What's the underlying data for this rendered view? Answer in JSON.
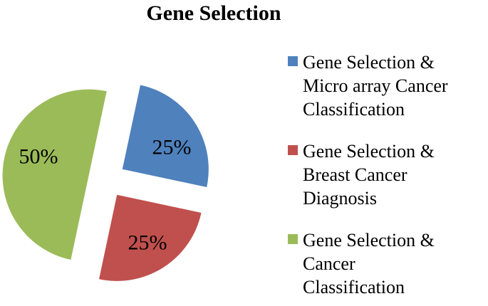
{
  "title": "Gene Selection",
  "chart_data": {
    "type": "pie",
    "title": "Gene Selection",
    "categories": [
      "Gene Selection & Micro array Cancer Classification",
      "Gene Selection & Breast Cancer Diagnosis",
      "Gene Selection & Cancer Classification"
    ],
    "values": [
      25,
      25,
      50
    ],
    "slice_labels": [
      "25%",
      "25%",
      "50%"
    ],
    "colors": [
      "#4F81BD",
      "#C0504D",
      "#9BBB59"
    ],
    "exploded": true,
    "start_angle_deg": 12,
    "legend_position": "right",
    "label_color": "#000000"
  },
  "legend": {
    "items": [
      {
        "color": "#4F81BD",
        "swatch_name": "blue-square",
        "lines": [
          "Gene Selection &",
          "Micro array Cancer",
          "Classification"
        ]
      },
      {
        "color": "#C0504D",
        "swatch_name": "red-square",
        "lines": [
          "Gene Selection &",
          "Breast Cancer",
          "Diagnosis"
        ]
      },
      {
        "color": "#9BBB59",
        "swatch_name": "green-square",
        "lines": [
          "Gene Selection &",
          "Cancer",
          "Classification"
        ]
      }
    ]
  }
}
